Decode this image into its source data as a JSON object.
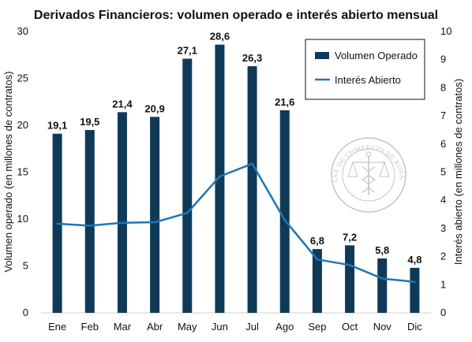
{
  "chart_data": {
    "type": "bar",
    "title": "Derivados Financieros: volumen operado e interés abierto mensual",
    "categories": [
      "Ene",
      "Feb",
      "Mar",
      "Abr",
      "May",
      "Jun",
      "Jul",
      "Ago",
      "Sep",
      "Oct",
      "Nov",
      "Dic"
    ],
    "series": [
      {
        "name": "Volumen Operado",
        "type": "bar",
        "axis": "left",
        "color": "#0e3a57",
        "values": [
          19.1,
          19.5,
          21.4,
          20.9,
          27.1,
          28.6,
          26.3,
          21.6,
          6.8,
          7.2,
          5.8,
          4.8
        ],
        "labels": [
          "19,1",
          "19,5",
          "21,4",
          "20,9",
          "27,1",
          "28,6",
          "26,3",
          "21,6",
          "6,8",
          "7,2",
          "5,8",
          "4,8"
        ]
      },
      {
        "name": "Interés Abierto",
        "type": "line",
        "axis": "right",
        "color": "#1f76b4",
        "values": [
          3.17,
          3.1,
          3.2,
          3.22,
          3.55,
          4.85,
          5.3,
          3.3,
          1.9,
          1.7,
          1.22,
          1.1
        ]
      }
    ],
    "ylabel": "Volumen operado (en millones de contratos)",
    "y2label": "Interés abierto (en millones de contratos)",
    "ylim": [
      0,
      30
    ],
    "y2lim": [
      0,
      10
    ],
    "yticks": [
      "0",
      "5",
      "10",
      "15",
      "20",
      "25",
      "30"
    ],
    "y2ticks": [
      "0",
      "1",
      "2",
      "3",
      "4",
      "5",
      "6",
      "7",
      "8",
      "9",
      "10"
    ],
    "legend_position": "top-right",
    "grid": false
  },
  "watermark": {
    "text": "BOLSA DE COMERCIO DE ROSARIO"
  }
}
